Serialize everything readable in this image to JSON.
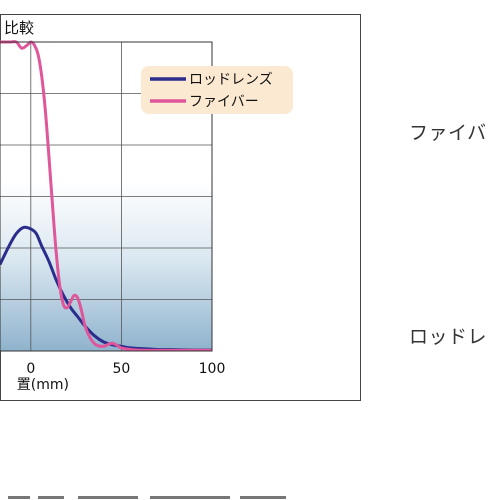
{
  "chart_data": {
    "type": "line",
    "title": "比較",
    "xlabel": "置(mm)",
    "ylabel": "",
    "xlim": [
      -17,
      100
    ],
    "ylim": [
      0,
      100
    ],
    "x_ticks": [
      0,
      50,
      100
    ],
    "grid": true,
    "legend_position": "top-right",
    "series": [
      {
        "name": "ロッドレンズ",
        "color": "#2a2d8c",
        "x": [
          -17,
          -12,
          -8,
          -4,
          0,
          3,
          6,
          10,
          14,
          18,
          22,
          26,
          30,
          35,
          40,
          45,
          50,
          55,
          60,
          70,
          80,
          90,
          100
        ],
        "y": [
          28,
          34,
          38,
          40,
          39.5,
          38,
          34,
          29,
          23,
          18,
          14,
          11,
          8,
          5,
          3,
          2,
          1.5,
          1,
          0.8,
          0.5,
          0.4,
          0.3,
          0.3
        ]
      },
      {
        "name": "ファイバー",
        "color": "#e0569b",
        "x": [
          -17,
          -14,
          -11,
          -8,
          -5,
          -2,
          0,
          2,
          4,
          6,
          8,
          10,
          12,
          14,
          16,
          18,
          20,
          22,
          24,
          26,
          28,
          30,
          33,
          36,
          40,
          45,
          50,
          55,
          60,
          70,
          80,
          90,
          100
        ],
        "y": [
          100,
          100,
          100,
          100,
          98,
          99,
          100,
          99,
          96,
          89,
          78,
          63,
          47,
          32,
          21,
          15,
          14,
          16,
          18,
          17,
          13,
          8,
          4,
          2,
          1.5,
          2.5,
          1,
          0.5,
          0.3,
          0.2,
          0.2,
          0.2,
          0.2
        ]
      }
    ]
  },
  "side_labels": {
    "fiber": "ファイバ",
    "rod": "ロッドレ"
  }
}
